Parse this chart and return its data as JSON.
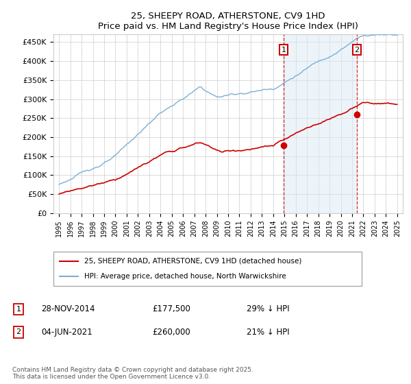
{
  "title": "25, SHEEPY ROAD, ATHERSTONE, CV9 1HD",
  "subtitle": "Price paid vs. HM Land Registry's House Price Index (HPI)",
  "hpi_label": "HPI: Average price, detached house, North Warwickshire",
  "price_label": "25, SHEEPY ROAD, ATHERSTONE, CV9 1HD (detached house)",
  "hpi_color": "#7bafd4",
  "hpi_fill_color": "#daeaf5",
  "price_color": "#cc0000",
  "dashed_color": "#cc0000",
  "marker1_x": 2014.92,
  "marker2_x": 2021.43,
  "sale1_y": 177500,
  "sale2_y": 260000,
  "xlim": [
    1994.5,
    2025.5
  ],
  "ylim": [
    0,
    470000
  ],
  "yticks": [
    0,
    50000,
    100000,
    150000,
    200000,
    250000,
    300000,
    350000,
    400000,
    450000
  ],
  "ytick_labels": [
    "£0",
    "£50K",
    "£100K",
    "£150K",
    "£200K",
    "£250K",
    "£300K",
    "£350K",
    "£400K",
    "£450K"
  ],
  "xticks": [
    1995,
    1996,
    1997,
    1998,
    1999,
    2000,
    2001,
    2002,
    2003,
    2004,
    2005,
    2006,
    2007,
    2008,
    2009,
    2010,
    2011,
    2012,
    2013,
    2014,
    2015,
    2016,
    2017,
    2018,
    2019,
    2020,
    2021,
    2022,
    2023,
    2024,
    2025
  ],
  "footer": "Contains HM Land Registry data © Crown copyright and database right 2025.\nThis data is licensed under the Open Government Licence v3.0.",
  "row1": [
    "1",
    "28-NOV-2014",
    "£177,500",
    "29% ↓ HPI"
  ],
  "row2": [
    "2",
    "04-JUN-2021",
    "£260,000",
    "21% ↓ HPI"
  ],
  "background_color": "#ffffff",
  "grid_color": "#cccccc"
}
